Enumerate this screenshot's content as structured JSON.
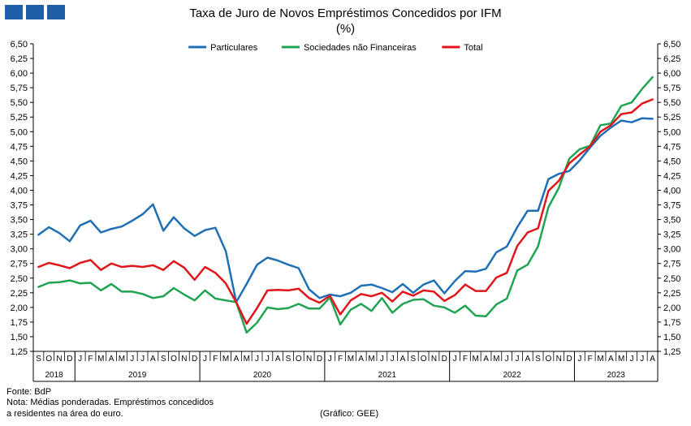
{
  "header": {
    "title": "Taxa de Juro de Novos Empréstimos  Concedidos por IFM",
    "unit": "(%)"
  },
  "footer": {
    "source": "Fonte: BdP",
    "note_line1": "Nota: Médias ponderadas. Empréstimos concedidos",
    "note_line2": "a residentes na área do euro.",
    "credit": "(Gráfico: GEE)"
  },
  "chart_data": {
    "type": "line",
    "title": "Taxa de Juro de Novos Empréstimos  Concedidos por IFM",
    "subtitle": "(%)",
    "ylim": [
      1.25,
      6.5
    ],
    "y_ticks": [
      "1,25",
      "1,50",
      "1,75",
      "2,00",
      "2,25",
      "2,50",
      "2,75",
      "3,00",
      "3,25",
      "3,50",
      "3,75",
      "4,00",
      "4,25",
      "4,50",
      "4,75",
      "5,00",
      "5,25",
      "5,50",
      "5,75",
      "6,00",
      "6,25",
      "6,50"
    ],
    "x_month_labels": [
      "S",
      "O",
      "N",
      "D",
      "J",
      "F",
      "M",
      "A",
      "M",
      "J",
      "J",
      "A",
      "S",
      "O",
      "N",
      "D",
      "J",
      "F",
      "M",
      "A",
      "M",
      "J",
      "J",
      "A",
      "S",
      "O",
      "N",
      "D",
      "J",
      "F",
      "M",
      "A",
      "M",
      "J",
      "J",
      "A",
      "S",
      "O",
      "N",
      "D",
      "J",
      "F",
      "M",
      "A",
      "M",
      "J",
      "J",
      "A",
      "S",
      "O",
      "N",
      "D",
      "J",
      "F",
      "M",
      "A",
      "M",
      "J",
      "J",
      "A"
    ],
    "x_year_labels": [
      "2018",
      "2019",
      "2020",
      "2021",
      "2022",
      "2023"
    ],
    "grid": false,
    "legend_position": "top-center",
    "colors": {
      "Particulares": "#1f6fb5",
      "Sociedades não Financeiras": "#21a354",
      "Total": "#e0161b"
    },
    "series": [
      {
        "name": "Particulares",
        "values": [
          3.24,
          3.37,
          3.27,
          3.13,
          3.4,
          3.48,
          3.28,
          3.34,
          3.38,
          3.48,
          3.59,
          3.76,
          3.31,
          3.54,
          3.35,
          3.22,
          3.32,
          3.36,
          2.96,
          2.09,
          2.4,
          2.73,
          2.85,
          2.8,
          2.73,
          2.67,
          2.31,
          2.16,
          2.22,
          2.19,
          2.25,
          2.37,
          2.39,
          2.33,
          2.26,
          2.4,
          2.25,
          2.39,
          2.46,
          2.24,
          2.45,
          2.62,
          2.61,
          2.66,
          2.94,
          3.04,
          3.37,
          3.65,
          3.65,
          4.19,
          4.28,
          4.33,
          4.51,
          4.73,
          4.93,
          5.07,
          5.19,
          5.16,
          5.23,
          5.22
        ]
      },
      {
        "name": "Sociedades não Financeiras",
        "values": [
          2.35,
          2.42,
          2.43,
          2.46,
          2.41,
          2.42,
          2.29,
          2.4,
          2.27,
          2.27,
          2.23,
          2.16,
          2.19,
          2.33,
          2.22,
          2.12,
          2.29,
          2.15,
          2.12,
          2.09,
          1.57,
          1.74,
          2.0,
          1.97,
          1.99,
          2.06,
          1.98,
          1.98,
          2.17,
          1.71,
          1.96,
          2.06,
          1.94,
          2.16,
          1.91,
          2.06,
          2.13,
          2.14,
          2.03,
          2.0,
          1.91,
          2.03,
          1.86,
          1.85,
          2.05,
          2.15,
          2.63,
          2.73,
          3.04,
          3.71,
          4.04,
          4.54,
          4.7,
          4.76,
          5.11,
          5.14,
          5.44,
          5.5,
          5.73,
          5.93
        ]
      },
      {
        "name": "Total",
        "values": [
          2.69,
          2.76,
          2.72,
          2.67,
          2.76,
          2.81,
          2.64,
          2.75,
          2.69,
          2.71,
          2.69,
          2.72,
          2.64,
          2.79,
          2.68,
          2.47,
          2.69,
          2.59,
          2.41,
          2.09,
          1.72,
          1.99,
          2.29,
          2.3,
          2.29,
          2.32,
          2.16,
          2.08,
          2.2,
          1.88,
          2.12,
          2.23,
          2.19,
          2.25,
          2.1,
          2.27,
          2.2,
          2.29,
          2.27,
          2.11,
          2.21,
          2.39,
          2.28,
          2.28,
          2.51,
          2.59,
          3.05,
          3.28,
          3.35,
          3.99,
          4.16,
          4.46,
          4.61,
          4.75,
          5.0,
          5.11,
          5.3,
          5.33,
          5.48,
          5.55
        ]
      }
    ]
  }
}
